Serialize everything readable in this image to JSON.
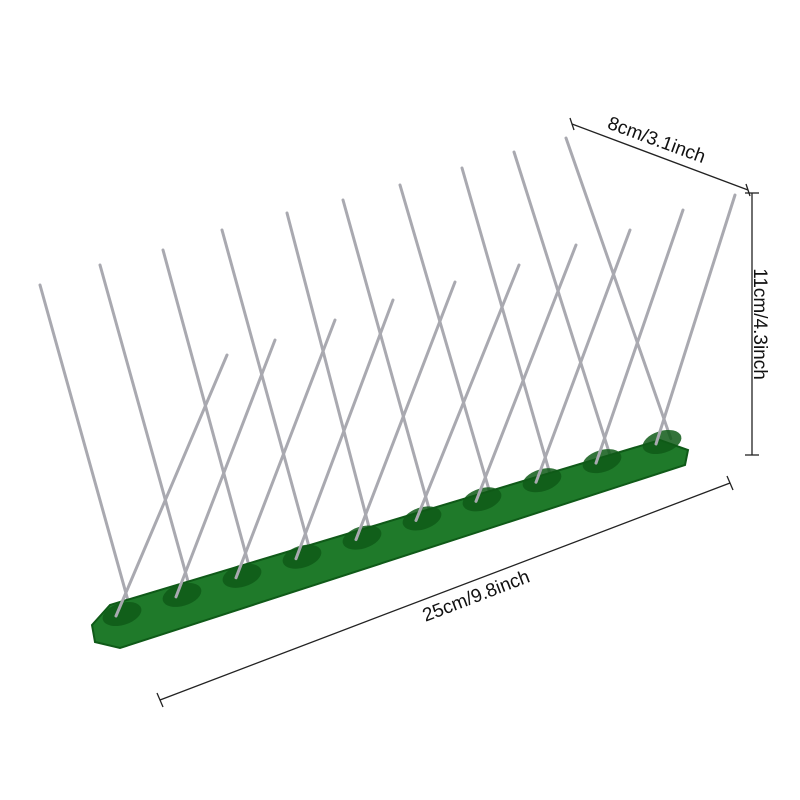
{
  "dimensions": {
    "depth": "8cm/3.1inch",
    "height": "11cm/4.3inch",
    "length": "25cm/9.8inch"
  },
  "colors": {
    "base": "#1f7a2a",
    "base_dark": "#0f5a18",
    "spike": "#a9a9b0",
    "line": "#222222"
  }
}
